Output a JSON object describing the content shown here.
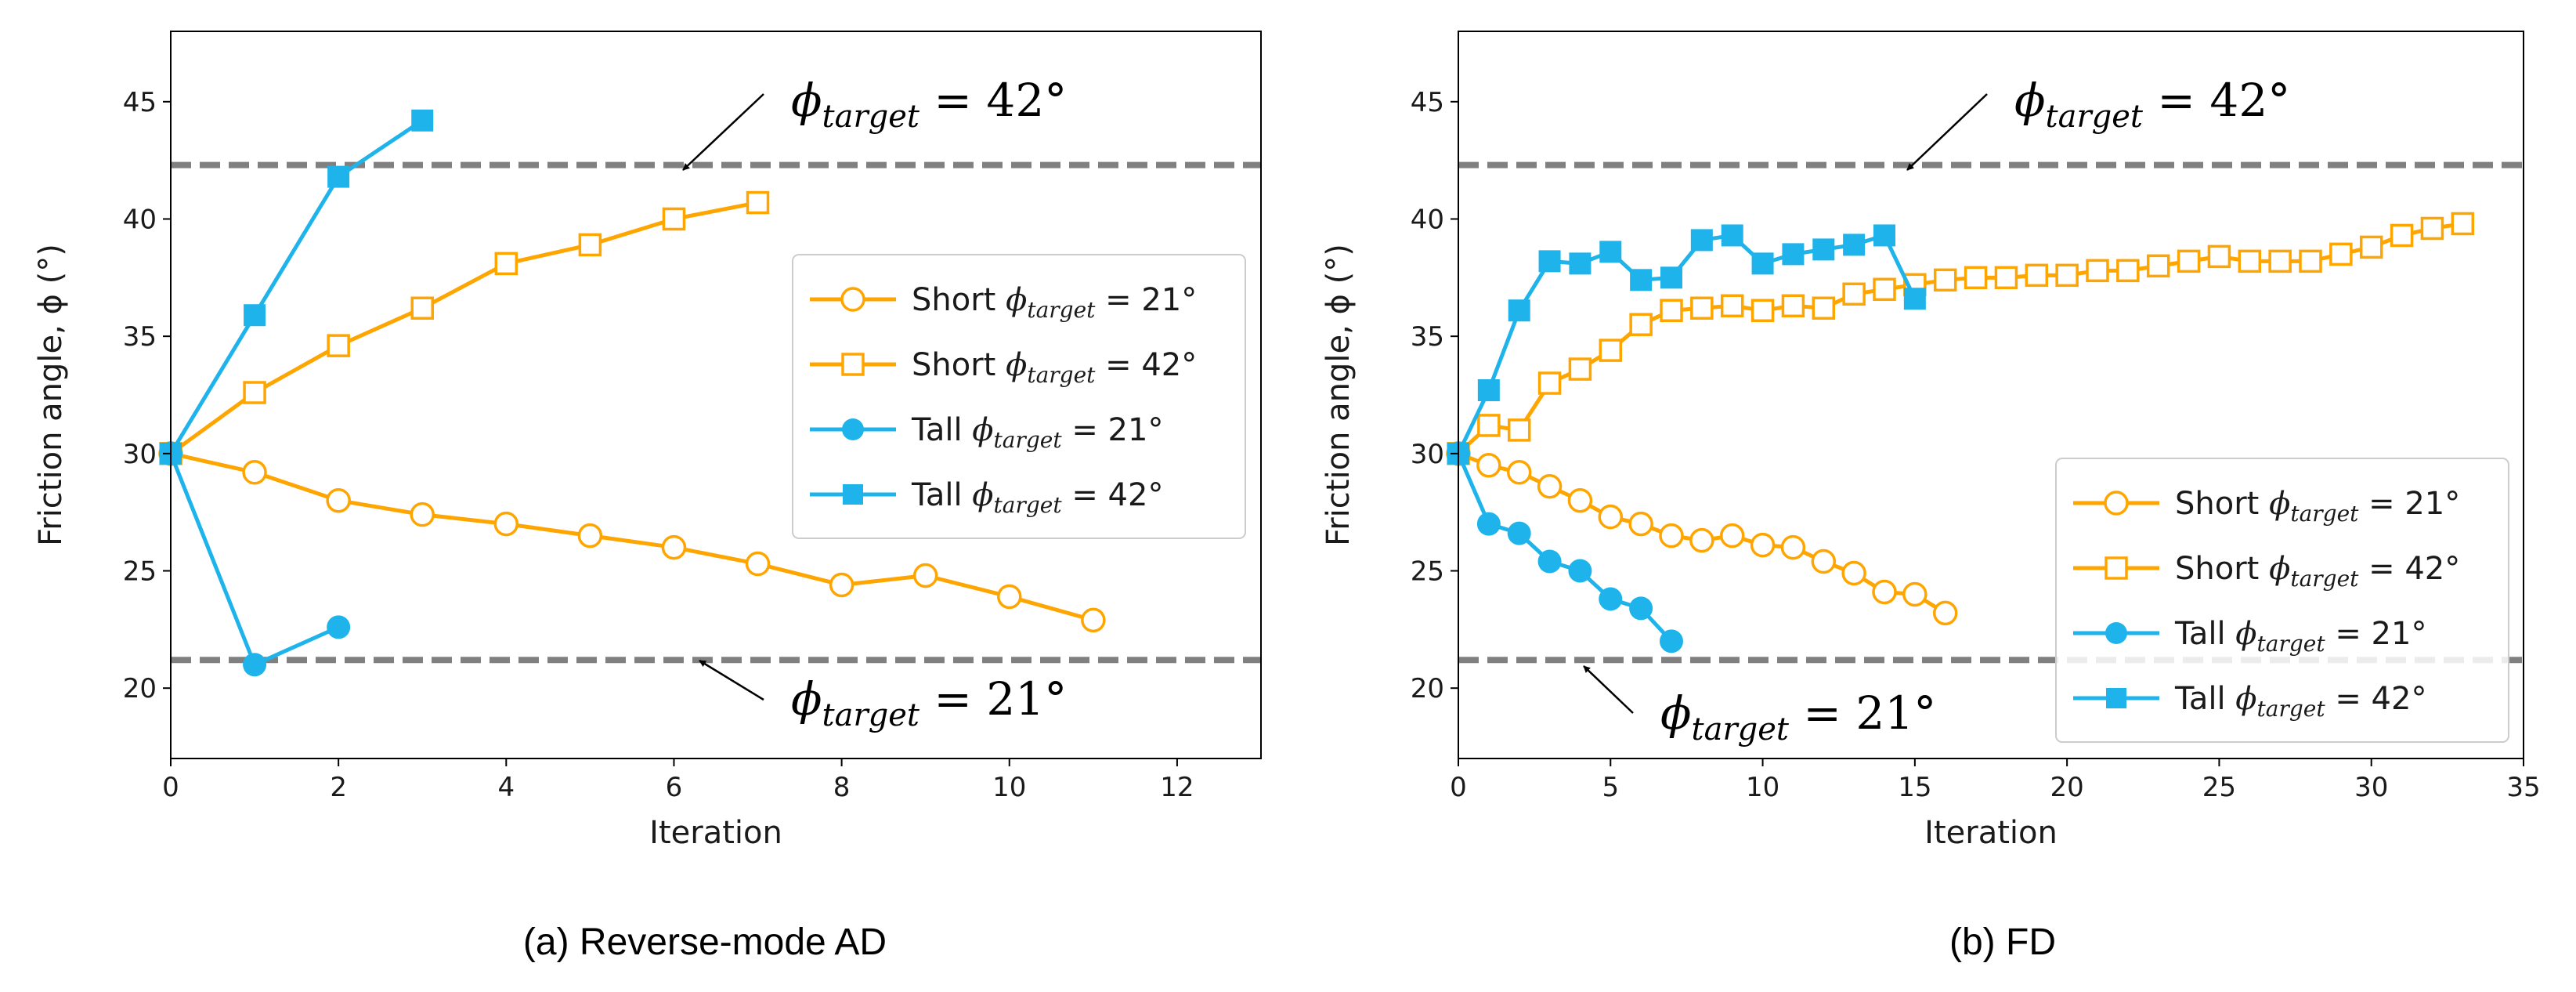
{
  "chart_data": [
    {
      "type": "line",
      "caption": "(a) Reverse-mode AD",
      "xlabel": "Iteration",
      "ylabel": "Friction angle, ϕ (°)",
      "xlim": [
        0,
        13
      ],
      "ylim": [
        17,
        48
      ],
      "xticks": [
        "0",
        "2",
        "4",
        "6",
        "8",
        "10",
        "12"
      ],
      "yticks": [
        "20",
        "25",
        "30",
        "35",
        "40",
        "45"
      ],
      "reference_lines": [
        {
          "y": 42.3,
          "label_main": "ϕ",
          "label_sub": "target",
          "label_rest": " = 42°"
        },
        {
          "y": 21.2,
          "label_main": "ϕ",
          "label_sub": "target",
          "label_rest": " = 21°"
        }
      ],
      "legend_position": "center-right",
      "series": [
        {
          "name": "Short",
          "target": "21°",
          "label_eq": " = 21°",
          "color": "#FFA500",
          "marker": "circle",
          "filled": false,
          "x": [
            0,
            1,
            2,
            3,
            4,
            5,
            6,
            7,
            8,
            9,
            10,
            11
          ],
          "y": [
            30.0,
            29.2,
            28.0,
            27.4,
            27.0,
            26.5,
            26.0,
            25.3,
            24.4,
            24.8,
            23.9,
            22.9
          ]
        },
        {
          "name": "Short",
          "target": "42°",
          "label_eq": " = 42°",
          "color": "#FFA500",
          "marker": "square",
          "filled": false,
          "x": [
            0,
            1,
            2,
            3,
            4,
            5,
            6,
            7
          ],
          "y": [
            30.0,
            32.6,
            34.6,
            36.2,
            38.1,
            38.9,
            40.0,
            40.7
          ]
        },
        {
          "name": "Tall",
          "target": "21°",
          "label_eq": " = 21°",
          "color": "#1EB4EB",
          "marker": "circle",
          "filled": true,
          "x": [
            0,
            1,
            2
          ],
          "y": [
            30.0,
            21.0,
            22.6
          ]
        },
        {
          "name": "Tall",
          "target": "42°",
          "label_eq": " = 42°",
          "color": "#1EB4EB",
          "marker": "square",
          "filled": true,
          "x": [
            0,
            1,
            2,
            3
          ],
          "y": [
            30.0,
            35.9,
            41.8,
            44.2
          ]
        }
      ]
    },
    {
      "type": "line",
      "caption": "(b) FD",
      "xlabel": "Iteration",
      "ylabel": "Friction angle, ϕ (°)",
      "xlim": [
        0,
        35
      ],
      "ylim": [
        17,
        48
      ],
      "xticks": [
        "0",
        "5",
        "10",
        "15",
        "20",
        "25",
        "30",
        "35"
      ],
      "yticks": [
        "20",
        "25",
        "30",
        "35",
        "40",
        "45"
      ],
      "reference_lines": [
        {
          "y": 42.3,
          "label_main": "ϕ",
          "label_sub": "target",
          "label_rest": " = 42°"
        },
        {
          "y": 21.2,
          "label_main": "ϕ",
          "label_sub": "target",
          "label_rest": " = 21°"
        }
      ],
      "legend_position": "lower-right",
      "series": [
        {
          "name": "Short",
          "target": "21°",
          "label_eq": " = 21°",
          "color": "#FFA500",
          "marker": "circle",
          "filled": false,
          "x": [
            0,
            1,
            2,
            3,
            4,
            5,
            6,
            7,
            8,
            9,
            10,
            11,
            12,
            13,
            14,
            15,
            16
          ],
          "y": [
            30.0,
            29.5,
            29.2,
            28.6,
            28.0,
            27.3,
            27.0,
            26.5,
            26.3,
            26.5,
            26.1,
            26.0,
            25.4,
            24.9,
            24.1,
            24.0,
            23.2
          ]
        },
        {
          "name": "Short",
          "target": "42°",
          "label_eq": " = 42°",
          "color": "#FFA500",
          "marker": "square",
          "filled": false,
          "x": [
            0,
            1,
            2,
            3,
            4,
            5,
            6,
            7,
            8,
            9,
            10,
            11,
            12,
            13,
            14,
            15,
            16,
            17,
            18,
            19,
            20,
            21,
            22,
            23,
            24,
            25,
            26,
            27,
            28,
            29,
            30,
            31,
            32,
            33
          ],
          "y": [
            30.0,
            31.2,
            31.0,
            33.0,
            33.6,
            34.4,
            35.5,
            36.1,
            36.2,
            36.3,
            36.1,
            36.3,
            36.2,
            36.8,
            37.0,
            37.2,
            37.4,
            37.5,
            37.5,
            37.6,
            37.6,
            37.8,
            37.8,
            38.0,
            38.2,
            38.4,
            38.2,
            38.2,
            38.2,
            38.5,
            38.8,
            39.3,
            39.6,
            39.8
          ]
        },
        {
          "name": "Tall",
          "target": "21°",
          "label_eq": " = 21°",
          "color": "#1EB4EB",
          "marker": "circle",
          "filled": true,
          "x": [
            0,
            1,
            2,
            3,
            4,
            5,
            6,
            7
          ],
          "y": [
            30.0,
            27.0,
            26.6,
            25.4,
            25.0,
            23.8,
            23.4,
            22.0
          ]
        },
        {
          "name": "Tall",
          "target": "42°",
          "label_eq": " = 42°",
          "color": "#1EB4EB",
          "marker": "square",
          "filled": true,
          "x": [
            0,
            1,
            2,
            3,
            4,
            5,
            6,
            7,
            8,
            9,
            10,
            11,
            12,
            13,
            14,
            15
          ],
          "y": [
            30.0,
            32.7,
            36.1,
            38.2,
            38.1,
            38.6,
            37.4,
            37.5,
            39.1,
            39.3,
            38.1,
            38.5,
            38.7,
            38.9,
            39.3,
            36.6
          ]
        }
      ]
    }
  ]
}
